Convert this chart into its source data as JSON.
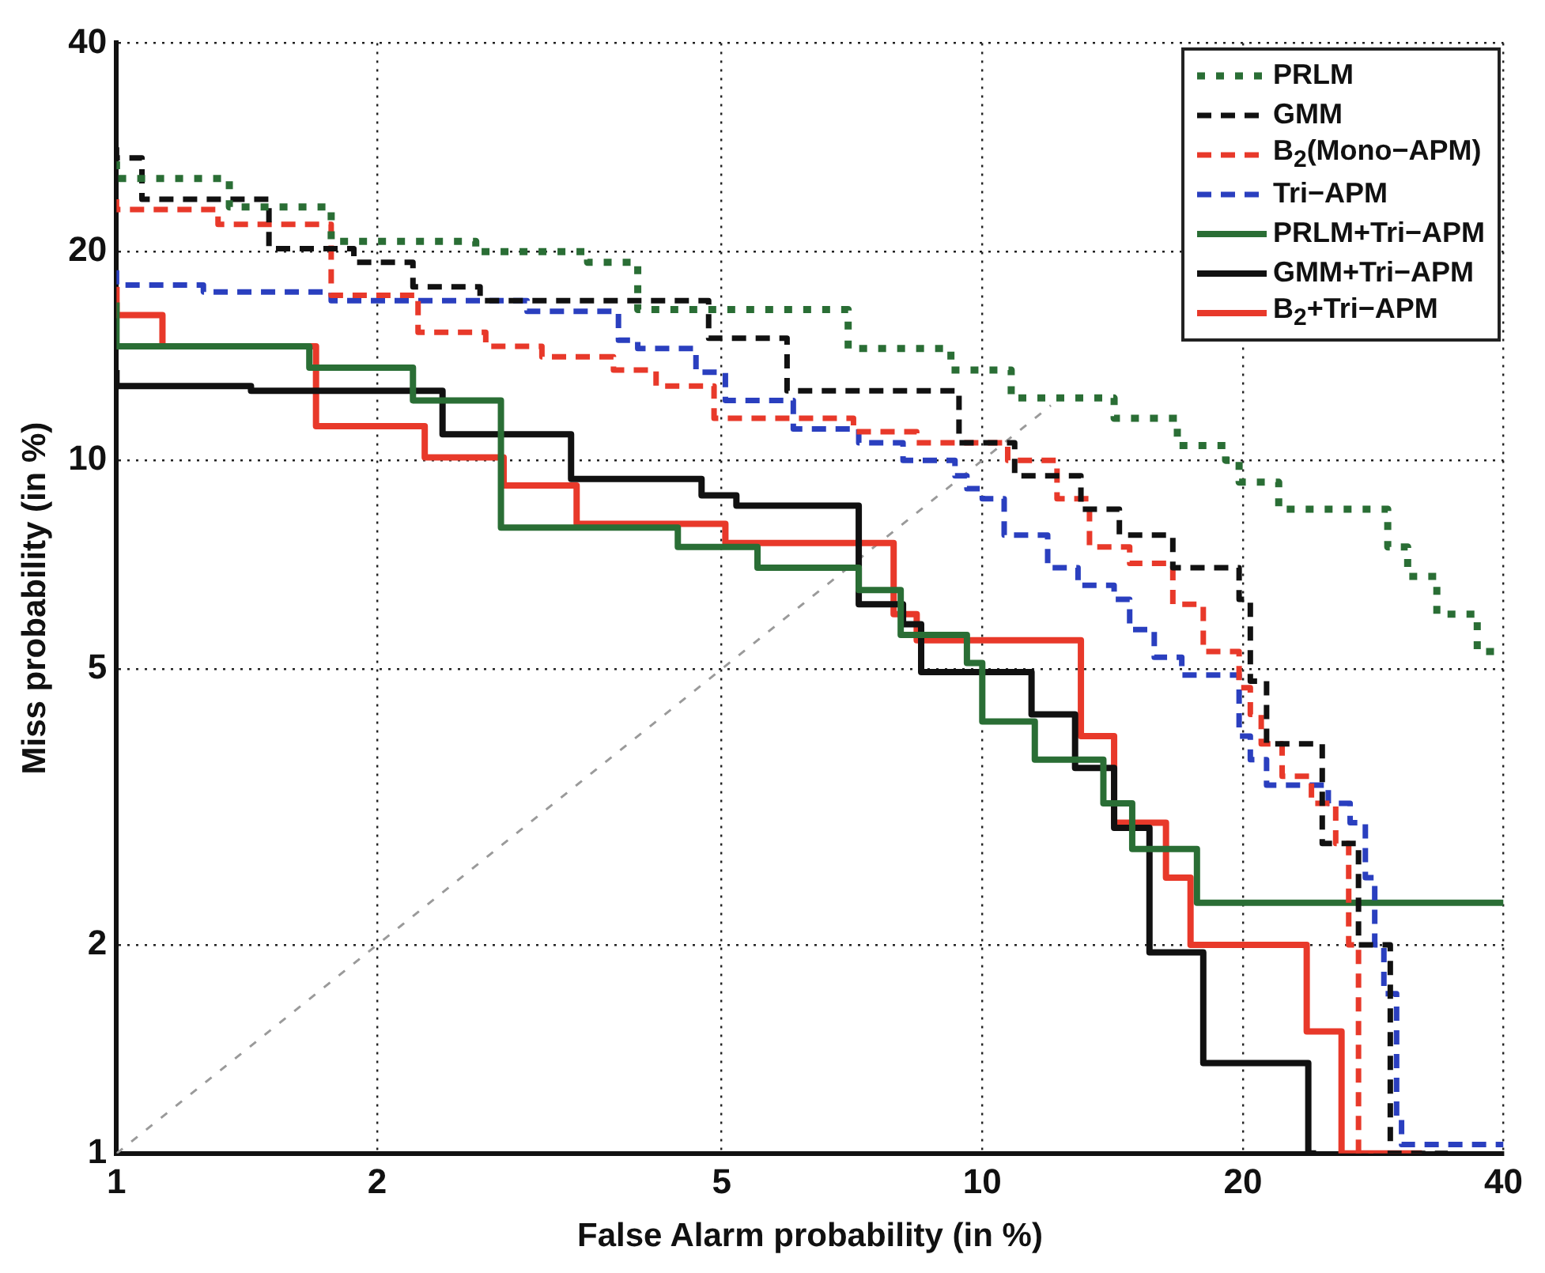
{
  "chart_data": {
    "type": "step",
    "xlabel": "False Alarm probability (in %)",
    "ylabel": "Miss probability (in %)",
    "xlim": [
      1,
      40
    ],
    "ylim": [
      1,
      40
    ],
    "xticks": [
      1,
      2,
      5,
      10,
      20,
      40
    ],
    "yticks": [
      1,
      2,
      5,
      10,
      20,
      40
    ],
    "grid": true,
    "legend": "top right",
    "log": "xy",
    "series": [
      {
        "name": "PRLM",
        "color": "#2a6e35",
        "line_style": "dotted",
        "x": [
          1,
          1.35,
          1.77,
          2.6,
          3.5,
          4,
          7,
          9.2,
          10.8,
          14.2,
          16.8,
          19.1,
          19.8,
          22,
          29.4,
          31,
          33.5,
          37.3,
          40
        ],
        "values": [
          27,
          25.5,
          23.2,
          20.7,
          20,
          19.3,
          16.5,
          14.5,
          13.5,
          12.3,
          11.5,
          10.5,
          10,
          9.3,
          8.5,
          7.5,
          6.8,
          6,
          5.3
        ]
      },
      {
        "name": "GMM",
        "color": "#111111",
        "line_style": "dashed",
        "x": [
          1,
          1.07,
          1.5,
          1.88,
          2.2,
          2.63,
          4.83,
          5.95,
          9.4,
          10.9,
          13,
          14.4,
          16.6,
          19.8,
          20.4,
          21.3,
          24.7,
          27.2,
          29.6,
          33.8,
          34.5
        ],
        "values": [
          28.3,
          27.3,
          23.8,
          20.2,
          19.3,
          17.8,
          17,
          15,
          12.6,
          10.6,
          9.5,
          8.5,
          7.8,
          7,
          6.3,
          4.8,
          3.9,
          2.8,
          2,
          1,
          1
        ]
      },
      {
        "name": "B$_{2}$(Mono−APM)",
        "color": "#e8392a",
        "line_style": "dashed",
        "x": [
          1,
          1.31,
          1.77,
          2.23,
          2.67,
          3.1,
          3.75,
          4.2,
          4.9,
          7.1,
          8.4,
          10.7,
          12.2,
          13.3,
          14.8,
          16.6,
          18,
          19.8,
          20.4,
          21,
          22.2,
          24,
          25.6,
          26.5,
          27.2,
          28.3
        ],
        "values": [
          23.8,
          23,
          21.9,
          17.3,
          15.3,
          14.6,
          14.1,
          13.5,
          12.8,
          11.5,
          11,
          10.6,
          10,
          8.8,
          7.5,
          7.1,
          6.2,
          5.3,
          4.7,
          4.3,
          3.9,
          3.5,
          3.2,
          2.8,
          2,
          1
        ]
      },
      {
        "name": "Tri−APM",
        "color": "#2a3fbf",
        "line_style": "dashed",
        "x": [
          1,
          1.26,
          1.77,
          2.98,
          3.8,
          4,
          4.67,
          5.05,
          6.05,
          7.2,
          8.1,
          9.3,
          9.6,
          10,
          10.6,
          11.9,
          12.9,
          14.2,
          14.8,
          15.8,
          17,
          19.8,
          20.4,
          21.3,
          25.1,
          26.6,
          27.7,
          28.4,
          29.1,
          30.1,
          30.5,
          40
        ],
        "values": [
          18.8,
          17.9,
          17.5,
          17,
          16.4,
          14.9,
          14.5,
          13.4,
          12.2,
          11.1,
          10.6,
          10,
          9.5,
          9.1,
          8.8,
          7.8,
          7,
          6.6,
          6.3,
          5.7,
          5.2,
          4.9,
          4,
          3.7,
          3.4,
          3.2,
          3,
          2.5,
          2,
          1.7,
          1.13,
          1.03
        ]
      },
      {
        "name": "PRLM+Tri−APM",
        "color": "#2a6e35",
        "x": [
          1,
          1.67,
          2.2,
          2.78,
          4.45,
          5.5,
          7.2,
          8.05,
          9.6,
          10,
          11.5,
          13.8,
          14.9,
          17.7,
          23.8,
          40
        ],
        "values": [
          16.9,
          14.6,
          13.6,
          12.2,
          8,
          7.5,
          7,
          6.5,
          5.6,
          5.1,
          4.2,
          3.7,
          3.2,
          2.75,
          2.3,
          2.3
        ]
      },
      {
        "name": "GMM+Tri−APM",
        "color": "#111111",
        "x": [
          1,
          1.43,
          2.38,
          3.35,
          4.74,
          5.2,
          7.2,
          8.1,
          8.5,
          11.4,
          12.8,
          14.2,
          15.6,
          18,
          23.8,
          24.3
        ],
        "values": [
          13.5,
          12.8,
          12.6,
          10.9,
          9.4,
          8.9,
          8.6,
          6.2,
          5.8,
          4.95,
          4.3,
          3.6,
          2.95,
          1.95,
          1.35,
          1
        ]
      },
      {
        "name": "B$_{2}$+Tri−APM",
        "color": "#e8392a",
        "x": [
          1,
          1.13,
          1.7,
          2.27,
          2.8,
          3.4,
          5.05,
          7.9,
          8.4,
          13,
          14.2,
          16.3,
          17.4,
          23.7,
          26,
          28.7,
          32.2
        ],
        "values": [
          17.8,
          16.2,
          14.6,
          11.2,
          10.1,
          9.2,
          8.1,
          7.6,
          6,
          5.5,
          4,
          3,
          2.5,
          2,
          1.5,
          1,
          1
        ]
      },
      {
        "type": "line",
        "color": "#9a9a9a",
        "line_style": "dotted",
        "x": [
          1,
          12
        ],
        "values": [
          1,
          12
        ]
      }
    ]
  }
}
